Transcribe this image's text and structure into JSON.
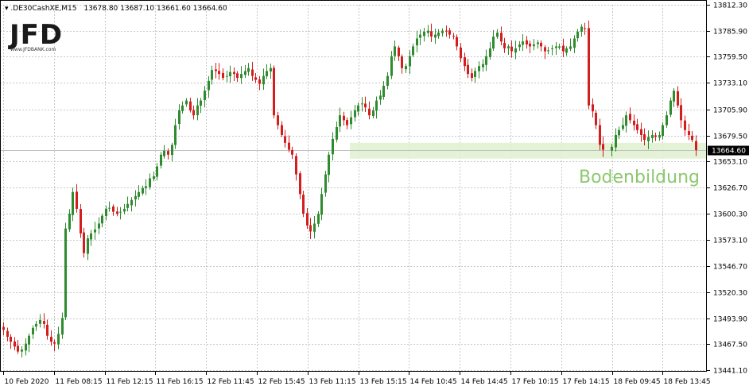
{
  "header": {
    "symbol": ".DE30CashXE,M15",
    "ohlc": "13678.80 13687.10 13661.60 13664.60"
  },
  "logo": {
    "text": "JFD",
    "url": "www.JFDBANK.com"
  },
  "colors": {
    "bull": "#2e8b2e",
    "bear": "#d41d1d",
    "zone": "#dff0cf",
    "annotation": "#8cc870",
    "price_badge": "#000000",
    "grid": "#c8c8c8"
  },
  "chart_data": {
    "type": "candlestick",
    "title": "",
    "xlabel": "",
    "ylabel": "",
    "ylim": [
      13441.1,
      13812.3
    ],
    "y_ticks": [
      13812.3,
      13785.9,
      13759.5,
      13733.1,
      13705.9,
      13679.5,
      13653.1,
      13626.7,
      13600.3,
      13573.1,
      13546.7,
      13520.3,
      13493.9,
      13467.5,
      13441.1
    ],
    "y_tick_labels": [
      "13812.30",
      "13785.90",
      "13759.50",
      "13733.10",
      "13705.90",
      "13679.50",
      "13653.10",
      "13626.70",
      "13600.30",
      "13573.10",
      "13546.70",
      "13520.30",
      "13493.90",
      "13467.50",
      "13441.10"
    ],
    "x_tick_labels": [
      "10 Feb 2020",
      "11 Feb 08:15",
      "11 Feb 12:15",
      "11 Feb 16:15",
      "12 Feb 11:45",
      "12 Feb 15:45",
      "13 Feb 11:15",
      "13 Feb 15:15",
      "14 Feb 10:45",
      "14 Feb 14:45",
      "17 Feb 10:15",
      "17 Feb 14:15",
      "18 Feb 09:45",
      "18 Feb 13:45"
    ],
    "current_price": 13664.6,
    "current_price_label": "13664.60",
    "zone": {
      "low": 13656,
      "high": 13672
    },
    "annotation": "Bodenbildung",
    "close_path": [
      13482,
      13475,
      13470,
      13465,
      13460,
      13462,
      13468,
      13476,
      13484,
      13488,
      13492,
      13488,
      13476,
      13470,
      13468,
      13478,
      13494,
      13585,
      13600,
      13622,
      13605,
      13580,
      13560,
      13575,
      13580,
      13584,
      13590,
      13598,
      13605,
      13606,
      13602,
      13600,
      13602,
      13605,
      13610,
      13614,
      13618,
      13622,
      13626,
      13628,
      13636,
      13638,
      13648,
      13660,
      13664,
      13660,
      13670,
      13690,
      13705,
      13710,
      13715,
      13705,
      13700,
      13710,
      13715,
      13725,
      13735,
      13746,
      13745,
      13742,
      13738,
      13740,
      13744,
      13742,
      13738,
      13742,
      13745,
      13748,
      13740,
      13736,
      13732,
      13740,
      13745,
      13748,
      13700,
      13690,
      13680,
      13672,
      13665,
      13660,
      13640,
      13620,
      13600,
      13588,
      13582,
      13590,
      13600,
      13620,
      13640,
      13660,
      13676,
      13688,
      13700,
      13695,
      13690,
      13698,
      13705,
      13710,
      13712,
      13708,
      13700,
      13705,
      13715,
      13720,
      13730,
      13740,
      13760,
      13770,
      13760,
      13748,
      13750,
      13760,
      13770,
      13778,
      13782,
      13785,
      13786,
      13780,
      13782,
      13784,
      13786,
      13785,
      13782,
      13780,
      13770,
      13758,
      13750,
      13742,
      13738,
      13745,
      13750,
      13752,
      13760,
      13768,
      13780,
      13784,
      13775,
      13768,
      13770,
      13765,
      13768,
      13772,
      13775,
      13772,
      13770,
      13772,
      13774,
      13770,
      13765,
      13766,
      13768,
      13770,
      13770,
      13765,
      13768,
      13770,
      13778,
      13785,
      13790,
      13788,
      13710,
      13704,
      13690,
      13670,
      13665,
      13668,
      13680,
      13685,
      13690,
      13700,
      13695,
      13690,
      13685,
      13680,
      13675,
      13678,
      13680,
      13678,
      13680,
      13690,
      13700,
      13715,
      13725,
      13710,
      13695,
      13685,
      13680,
      13675,
      13664.6
    ]
  }
}
